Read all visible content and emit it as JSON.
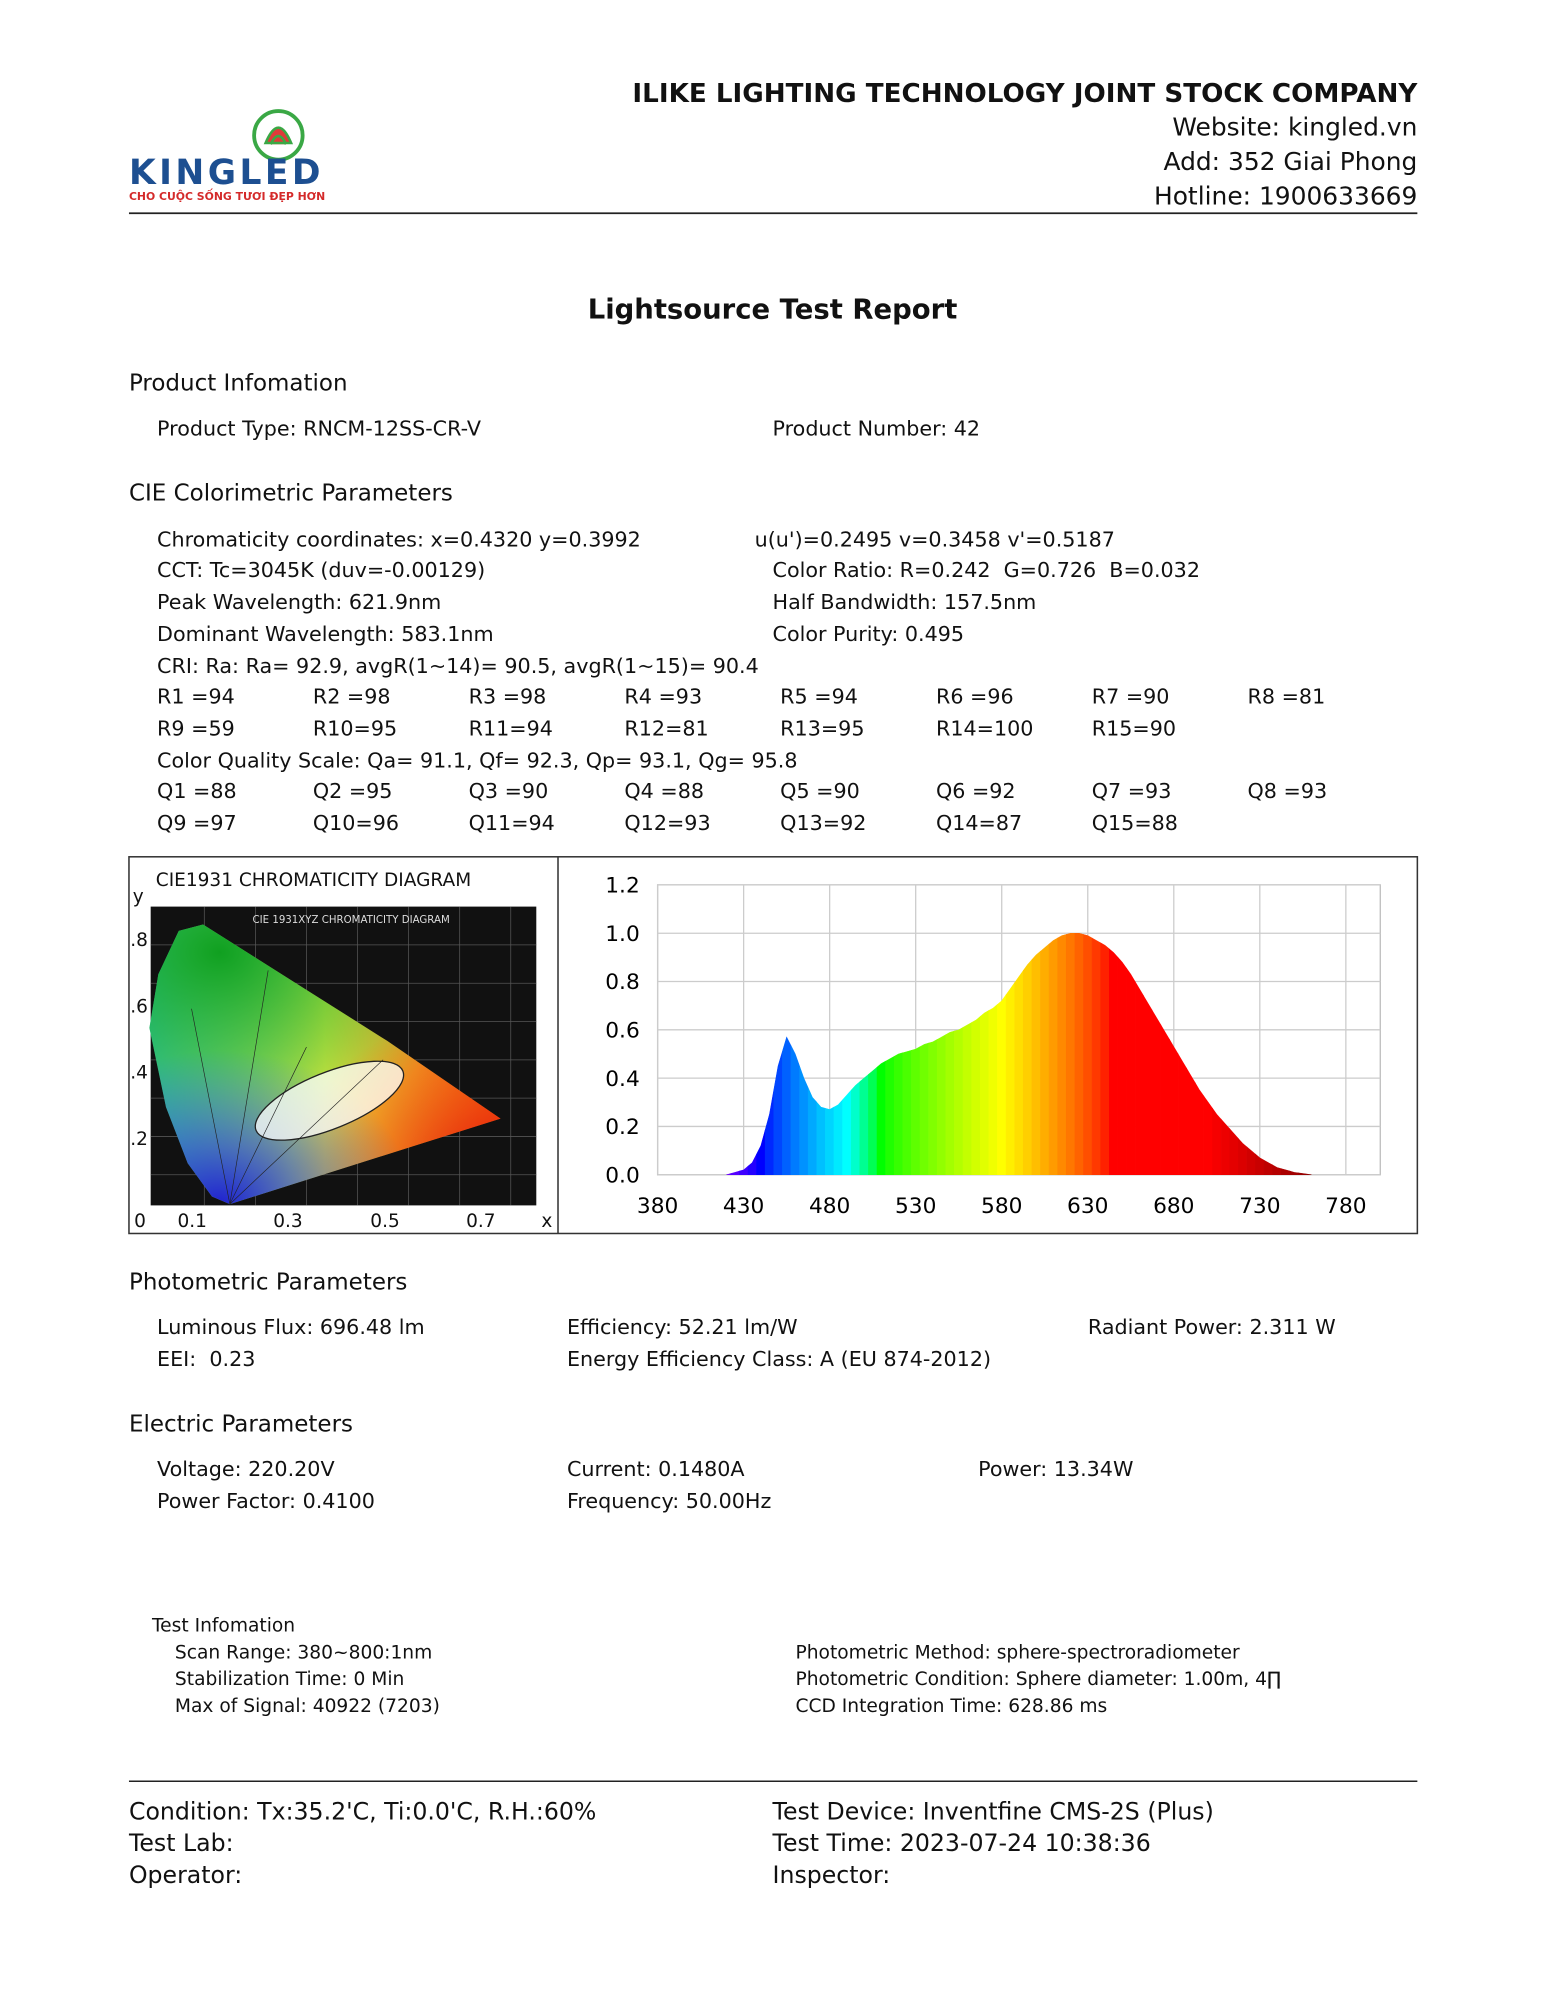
{
  "header": {
    "company": "ILIKE LIGHTING TECHNOLOGY JOINT STOCK COMPANY",
    "website": "Website: kingled.vn",
    "address": "Add: 352 Giai Phong",
    "hotline": "Hotline: 1900633669"
  },
  "logo": {
    "brand": "KINGLED",
    "tagline": "CHO CUỘC SỐNG TƯƠI ĐẸP HƠN"
  },
  "title": "Lightsource Test Report",
  "product": {
    "heading": "Product Infomation",
    "type": "Product Type: RNCM-12SS-CR-V",
    "number": "Product Number: 42"
  },
  "cie_params": {
    "heading": "CIE Colorimetric Parameters",
    "chromaticity": "Chromaticity coordinates: x=0.4320 y=0.3992",
    "uv": "u(u')=0.2495 v=0.3458 v'=0.5187",
    "cct": "CCT: Tc=3045K (duv=-0.00129)",
    "color_ratio": "Color Ratio: R=0.242  G=0.726  B=0.032",
    "peak": "Peak Wavelength: 621.9nm",
    "half_bandwidth": "Half Bandwidth: 157.5nm",
    "dominant": "Dominant Wavelength: 583.1nm",
    "purity": "Color Purity: 0.495",
    "cri": "CRI: Ra: Ra= 92.9, avgR(1~14)= 90.5, avgR(1~15)= 90.4",
    "r_values": [
      "R1 =94",
      "R2 =98",
      "R3 =98",
      "R4 =93",
      "R5 =94",
      "R6 =96",
      "R7 =90",
      "R8 =81",
      "R9 =59",
      "R10=95",
      "R11=94",
      "R12=81",
      "R13=95",
      "R14=100",
      "R15=90"
    ],
    "cqs": "Color Quality Scale: Qa= 91.1, Qf= 92.3, Qp= 93.1, Qg= 95.8",
    "q_values": [
      "Q1 =88",
      "Q2 =95",
      "Q3 =90",
      "Q4 =88",
      "Q5 =90",
      "Q6 =92",
      "Q7 =93",
      "Q8 =93",
      "Q9 =97",
      "Q10=96",
      "Q11=94",
      "Q12=93",
      "Q13=92",
      "Q14=87",
      "Q15=88"
    ]
  },
  "cie_diagram": {
    "title": "CIE1931 CHROMATICITY DIAGRAM",
    "image_title": "CIE 1931XYZ CHROMATICITY DIAGRAM",
    "y_label": "y",
    "x_label": "x",
    "yticks": [
      ".8",
      ".6",
      ".4",
      ".2"
    ],
    "xticks": [
      "0",
      "0.1",
      "0.3",
      "0.5",
      "0.7"
    ]
  },
  "chart_data": {
    "type": "area",
    "xlim": [
      380,
      800
    ],
    "ylim": [
      0,
      1.2
    ],
    "xticks": [
      380,
      430,
      480,
      530,
      580,
      630,
      680,
      730,
      780
    ],
    "yticks": [
      {
        "value": 0,
        "label": "0.0"
      },
      0.2,
      0.4,
      0.6,
      0.8,
      {
        "value": 1,
        "label": "1.0"
      },
      1.2
    ],
    "grid": true,
    "x": [
      420,
      425,
      430,
      435,
      440,
      445,
      450,
      455,
      460,
      465,
      470,
      475,
      480,
      485,
      490,
      495,
      500,
      505,
      510,
      515,
      520,
      525,
      530,
      535,
      540,
      545,
      550,
      555,
      560,
      565,
      570,
      575,
      580,
      585,
      590,
      595,
      600,
      605,
      610,
      615,
      620,
      625,
      630,
      635,
      640,
      645,
      650,
      655,
      660,
      665,
      670,
      675,
      680,
      685,
      690,
      695,
      700,
      705,
      710,
      715,
      720,
      725,
      730,
      735,
      740,
      745,
      750,
      755,
      760
    ],
    "values": [
      0,
      0.01,
      0.02,
      0.05,
      0.12,
      0.25,
      0.45,
      0.57,
      0.5,
      0.4,
      0.32,
      0.28,
      0.27,
      0.29,
      0.33,
      0.37,
      0.4,
      0.43,
      0.46,
      0.48,
      0.5,
      0.51,
      0.52,
      0.54,
      0.55,
      0.57,
      0.59,
      0.6,
      0.62,
      0.64,
      0.67,
      0.69,
      0.72,
      0.77,
      0.82,
      0.87,
      0.91,
      0.94,
      0.97,
      0.99,
      1,
      1,
      0.99,
      0.97,
      0.95,
      0.92,
      0.88,
      0.83,
      0.77,
      0.71,
      0.65,
      0.59,
      0.53,
      0.47,
      0.41,
      0.35,
      0.3,
      0.25,
      0.21,
      0.17,
      0.13,
      0.1,
      0.07,
      0.05,
      0.03,
      0.02,
      0.01,
      0.005,
      0
    ]
  },
  "photometric": {
    "heading": "Photometric Parameters",
    "flux": "Luminous Flux: 696.48 lm",
    "efficiency": "Efficiency: 52.21 lm/W",
    "radiant": "Radiant Power: 2.311 W",
    "eei": "EEI:  0.23",
    "energy_class": "Energy Efficiency Class: A (EU 874-2012)"
  },
  "electric": {
    "heading": "Electric Parameters",
    "voltage": "Voltage: 220.20V",
    "current": "Current: 0.1480A",
    "power": "Power: 13.34W",
    "power_factor": "Power Factor: 0.4100",
    "frequency": "Frequency: 50.00Hz"
  },
  "test_info": {
    "heading": "Test Infomation",
    "scan_range": "Scan Range: 380~800:1nm",
    "stabilization": "Stabilization Time: 0 Min",
    "max_signal": "Max of Signal: 40922 (7203)",
    "method": "Photometric Method: sphere-spectroradiometer",
    "condition": "Photometric Condition: Sphere diameter: 1.00m, 4∏",
    "ccd": "CCD Integration Time: 628.86 ms"
  },
  "footer": {
    "condition": "Condition: Tx:35.2'C, Ti:0.0'C, R.H.:60%",
    "test_lab": "Test Lab:",
    "operator": "Operator:",
    "device": "Test Device: Inventfine CMS-2S (Plus)",
    "time": "Test Time: 2023-07-24 10:38:36",
    "inspector": "Inspector:"
  }
}
